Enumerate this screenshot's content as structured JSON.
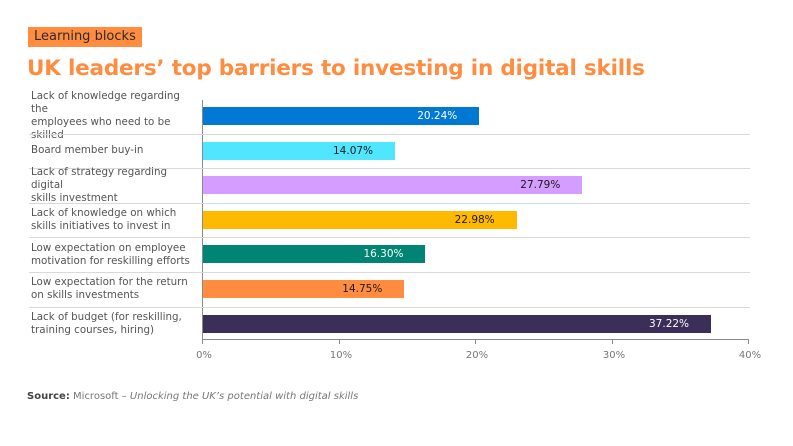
{
  "header": {
    "badge": "Learning blocks",
    "title": "UK leaders’ top barriers to investing in digital skills"
  },
  "source": {
    "label": "Source:",
    "publisher": "Microsoft – ",
    "publication": "Unlocking the UK’s potential with digital skills"
  },
  "chart_data": {
    "type": "bar",
    "orientation": "horizontal",
    "title": "UK leaders’ top barriers to investing in digital skills",
    "xlabel": "",
    "ylabel": "",
    "xlim": [
      0,
      40
    ],
    "x_ticks": [
      "0%",
      "10%",
      "20%",
      "30%",
      "40%"
    ],
    "grid": false,
    "legend": null,
    "categories": [
      "Lack of knowledge regarding the employees who need to be skilled",
      "Board member buy-in",
      "Lack of strategy regarding digital skills investment",
      "Lack of knowledge on which skills initiatives to invest in",
      "Low expectation on employee motivation for reskilling efforts",
      "Low expectation for the return on skills investments",
      "Lack of budget (for reskilling, training courses, hiring)"
    ],
    "values": [
      20.24,
      14.07,
      27.79,
      22.98,
      16.3,
      14.75,
      37.22
    ],
    "value_labels": [
      "20.24%",
      "14.07%",
      "27.79%",
      "22.98%",
      "16.30%",
      "14.75%",
      "37.22%"
    ],
    "colors": [
      "#0078d4",
      "#50e6ff",
      "#d59dff",
      "#ffb900",
      "#008575",
      "#ff8c3f",
      "#3b2e58"
    ],
    "label_colors": [
      "#ffffff",
      "#1a1a1a",
      "#1a1a1a",
      "#1a1a1a",
      "#ffffff",
      "#1a1a1a",
      "#ffffff"
    ],
    "rows": [
      {
        "label_line1": "Lack of knowledge regarding the",
        "label_line2": "employees who need to be skilled"
      },
      {
        "label_line1": "Board member buy-in",
        "label_line2": ""
      },
      {
        "label_line1": "Lack of strategy regarding digital",
        "label_line2": "skills investment"
      },
      {
        "label_line1": "Lack of knowledge on which",
        "label_line2": "skills initiatives to invest in"
      },
      {
        "label_line1": "Low expectation on employee",
        "label_line2": "motivation for reskilling efforts"
      },
      {
        "label_line1": "Low expectation for the return",
        "label_line2": "on skills investments"
      },
      {
        "label_line1": "Lack of budget (for reskilling,",
        "label_line2": "training courses, hiring)"
      }
    ]
  }
}
